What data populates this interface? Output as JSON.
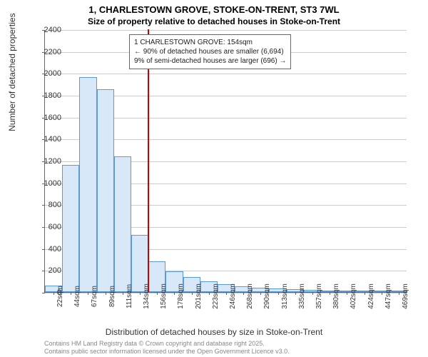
{
  "title": {
    "line1": "1, CHARLESTOWN GROVE, STOKE-ON-TRENT, ST3 7WL",
    "line2": "Size of property relative to detached houses in Stoke-on-Trent"
  },
  "chart": {
    "type": "histogram",
    "ylim": [
      0,
      2400
    ],
    "ytick_step": 200,
    "yticks": [
      0,
      200,
      400,
      600,
      800,
      1000,
      1200,
      1400,
      1600,
      1800,
      2000,
      2200,
      2400
    ],
    "xlabels": [
      "22sqm",
      "44sqm",
      "67sqm",
      "89sqm",
      "111sqm",
      "134sqm",
      "156sqm",
      "178sqm",
      "201sqm",
      "223sqm",
      "246sqm",
      "268sqm",
      "290sqm",
      "313sqm",
      "335sqm",
      "357sqm",
      "380sqm",
      "402sqm",
      "424sqm",
      "447sqm",
      "469sqm"
    ],
    "values": [
      60,
      1160,
      1960,
      1850,
      1240,
      520,
      280,
      190,
      140,
      100,
      70,
      50,
      40,
      35,
      25,
      20,
      15,
      10,
      8,
      5,
      3
    ],
    "bar_color": "#d8e8f8",
    "bar_border_color": "#5a9ad5",
    "background_color": "#ffffff",
    "grid_color": "#cccccc",
    "ref_line": {
      "x_index": 6,
      "color": "#cc0000"
    },
    "y_axis_title": "Number of detached properties",
    "x_axis_title": "Distribution of detached houses by size in Stoke-on-Trent"
  },
  "annotation": {
    "line1": "1 CHARLESTOWN GROVE: 154sqm",
    "line2": "← 90% of detached houses are smaller (6,694)",
    "line3": "9% of semi-detached houses are larger (696) →"
  },
  "footer": {
    "line1": "Contains HM Land Registry data © Crown copyright and database right 2025.",
    "line2": "Contains public sector information licensed under the Open Government Licence v3.0."
  },
  "fonts": {
    "title_size": 13,
    "subtitle_size": 12,
    "axis_title_size": 12,
    "tick_label_size": 11,
    "annotation_size": 10,
    "footer_size": 9
  }
}
